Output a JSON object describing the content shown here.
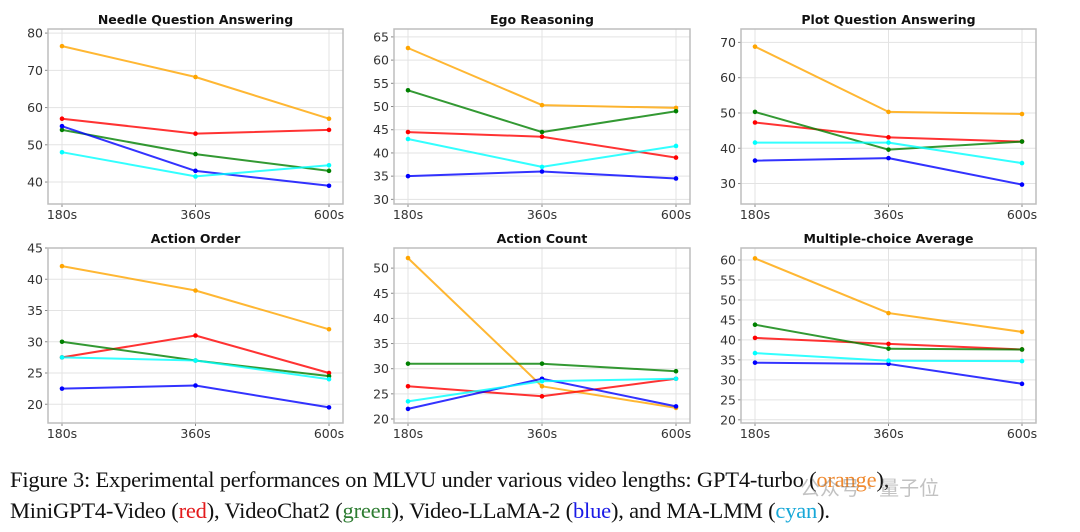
{
  "figure": {
    "caption_parts": {
      "line1_prefix": "Figure 3: Experimental performances on MLVU under various video lengths: GPT4-turbo (",
      "line1_color_word": "orange",
      "line1_suffix": "),",
      "line2_a": "MiniGPT4-Video (",
      "line2_red": "red",
      "line2_b": "), VideoChat2 (",
      "line2_green": "green",
      "line2_c": "), Video-LLaMA-2 (",
      "line2_blue": "blue",
      "line2_d": "), and MA-LMM (",
      "line2_cyan": "cyan",
      "line2_e": ")."
    },
    "watermark": "公众号 · 量子位"
  },
  "chart_data": [
    {
      "type": "line",
      "title": "Needle Question Answering",
      "categories": [
        "180s",
        "360s",
        "600s"
      ],
      "ylim": [
        34.1,
        81.1
      ],
      "yticks": [
        40,
        50,
        60,
        70,
        80
      ],
      "grid": true,
      "xlabel": "",
      "ylabel": "",
      "series": [
        {
          "name": "GPT4-turbo",
          "color": "#ffa500",
          "values": [
            76.5,
            68.2,
            57.0
          ]
        },
        {
          "name": "MiniGPT4-Video",
          "color": "#ff0000",
          "values": [
            57.0,
            53.0,
            54.0
          ]
        },
        {
          "name": "VideoChat2",
          "color": "#008000",
          "values": [
            54.0,
            47.5,
            43.0
          ]
        },
        {
          "name": "Video-LLaMA-2",
          "color": "#0000ff",
          "values": [
            55.0,
            43.0,
            39.0
          ]
        },
        {
          "name": "MA-LMM",
          "color": "#00ffff",
          "values": [
            48.0,
            41.5,
            44.5
          ]
        }
      ]
    },
    {
      "type": "line",
      "title": "Ego Reasoning",
      "categories": [
        "180s",
        "360s",
        "600s"
      ],
      "ylim": [
        29.0,
        66.7
      ],
      "yticks": [
        30,
        35,
        40,
        45,
        50,
        55,
        60,
        65
      ],
      "grid": true,
      "xlabel": "",
      "ylabel": "",
      "series": [
        {
          "name": "GPT4-turbo",
          "color": "#ffa500",
          "values": [
            62.6,
            50.3,
            49.7
          ]
        },
        {
          "name": "MiniGPT4-Video",
          "color": "#ff0000",
          "values": [
            44.5,
            43.5,
            39.0
          ]
        },
        {
          "name": "VideoChat2",
          "color": "#008000",
          "values": [
            53.5,
            44.5,
            49.0
          ]
        },
        {
          "name": "Video-LLaMA-2",
          "color": "#0000ff",
          "values": [
            35.0,
            36.0,
            34.5
          ]
        },
        {
          "name": "MA-LMM",
          "color": "#00ffff",
          "values": [
            43.0,
            37.0,
            41.5
          ]
        }
      ]
    },
    {
      "type": "line",
      "title": "Plot Question Answering",
      "categories": [
        "180s",
        "360s",
        "600s"
      ],
      "ylim": [
        24.2,
        73.8
      ],
      "yticks": [
        30,
        40,
        50,
        60,
        70
      ],
      "grid": true,
      "xlabel": "",
      "ylabel": "",
      "series": [
        {
          "name": "GPT4-turbo",
          "color": "#ffa500",
          "values": [
            68.8,
            50.3,
            49.7
          ]
        },
        {
          "name": "MiniGPT4-Video",
          "color": "#ff0000",
          "values": [
            47.3,
            43.1,
            41.9
          ]
        },
        {
          "name": "VideoChat2",
          "color": "#008000",
          "values": [
            50.3,
            39.6,
            41.9
          ]
        },
        {
          "name": "Video-LLaMA-2",
          "color": "#0000ff",
          "values": [
            36.5,
            37.2,
            29.7
          ]
        },
        {
          "name": "MA-LMM",
          "color": "#00ffff",
          "values": [
            41.6,
            41.6,
            35.8
          ]
        }
      ]
    },
    {
      "type": "line",
      "title": "Action Order",
      "categories": [
        "180s",
        "360s",
        "600s"
      ],
      "ylim": [
        17.0,
        45.0
      ],
      "yticks": [
        20,
        25,
        30,
        35,
        40,
        45
      ],
      "grid": true,
      "xlabel": "",
      "ylabel": "",
      "series": [
        {
          "name": "GPT4-turbo",
          "color": "#ffa500",
          "values": [
            42.1,
            38.2,
            32.0
          ]
        },
        {
          "name": "MiniGPT4-Video",
          "color": "#ff0000",
          "values": [
            27.5,
            31.0,
            25.0
          ]
        },
        {
          "name": "VideoChat2",
          "color": "#008000",
          "values": [
            30.0,
            27.0,
            24.5
          ]
        },
        {
          "name": "Video-LLaMA-2",
          "color": "#0000ff",
          "values": [
            22.5,
            23.0,
            19.5
          ]
        },
        {
          "name": "MA-LMM",
          "color": "#00ffff",
          "values": [
            27.5,
            27.0,
            24.0
          ]
        }
      ]
    },
    {
      "type": "line",
      "title": "Action Count",
      "categories": [
        "180s",
        "360s",
        "600s"
      ],
      "ylim": [
        19.2,
        54.0
      ],
      "yticks": [
        20,
        25,
        30,
        35,
        40,
        45,
        50
      ],
      "grid": true,
      "xlabel": "",
      "ylabel": "",
      "series": [
        {
          "name": "GPT4-turbo",
          "color": "#ffa500",
          "values": [
            52.0,
            26.5,
            22.2
          ]
        },
        {
          "name": "MiniGPT4-Video",
          "color": "#ff0000",
          "values": [
            26.5,
            24.5,
            28.0
          ]
        },
        {
          "name": "VideoChat2",
          "color": "#008000",
          "values": [
            31.0,
            31.0,
            29.5
          ]
        },
        {
          "name": "Video-LLaMA-2",
          "color": "#0000ff",
          "values": [
            22.0,
            28.0,
            22.5
          ]
        },
        {
          "name": "MA-LMM",
          "color": "#00ffff",
          "values": [
            23.5,
            27.5,
            28.0
          ]
        }
      ]
    },
    {
      "type": "line",
      "title": "Multiple-choice Average",
      "categories": [
        "180s",
        "360s",
        "600s"
      ],
      "ylim": [
        19.2,
        63.0
      ],
      "yticks": [
        20,
        25,
        30,
        35,
        40,
        45,
        50,
        55,
        60
      ],
      "grid": true,
      "xlabel": "",
      "ylabel": "",
      "series": [
        {
          "name": "GPT4-turbo",
          "color": "#ffa500",
          "values": [
            60.4,
            46.7,
            42.0
          ]
        },
        {
          "name": "MiniGPT4-Video",
          "color": "#ff0000",
          "values": [
            40.5,
            39.0,
            37.6
          ]
        },
        {
          "name": "VideoChat2",
          "color": "#008000",
          "values": [
            43.8,
            37.8,
            37.6
          ]
        },
        {
          "name": "Video-LLaMA-2",
          "color": "#0000ff",
          "values": [
            34.3,
            34.0,
            29.0
          ]
        },
        {
          "name": "MA-LMM",
          "color": "#00ffff",
          "values": [
            36.7,
            34.8,
            34.7
          ]
        }
      ]
    }
  ]
}
